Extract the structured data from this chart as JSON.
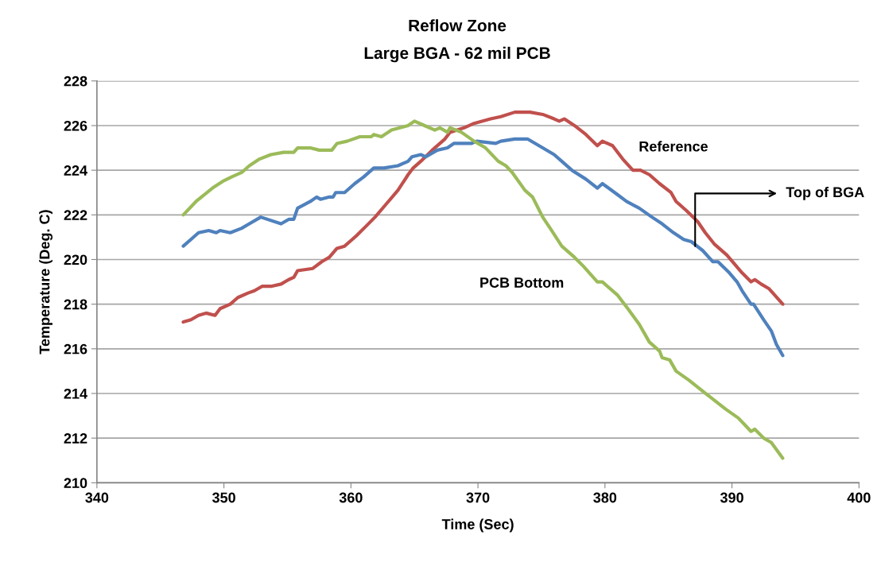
{
  "chart_data": {
    "type": "line",
    "title": "Reflow Zone",
    "subtitle": "Large BGA - 62 mil PCB",
    "xlabel": "Time (Sec)",
    "ylabel": "Temperature (Deg. C)",
    "xlim": [
      340,
      400
    ],
    "xticks": [
      340,
      350,
      360,
      370,
      380,
      390,
      400
    ],
    "ylim": [
      210,
      228
    ],
    "yticks": [
      210,
      212,
      214,
      216,
      218,
      220,
      222,
      224,
      226,
      228
    ],
    "annotations": [
      {
        "text": "Top of BGA",
        "x": 387.1,
        "y": 220.6
      }
    ],
    "grid": "y",
    "legend": false,
    "marker": "none",
    "line_style": "solid",
    "series": [
      {
        "name": "Reference",
        "color": "#c0504d",
        "x": [
          346.8,
          347.4,
          348.0,
          348.6,
          349.3,
          349.7,
          350.5,
          351.1,
          351.9,
          352.4,
          353.0,
          353.7,
          354.5,
          355.1,
          355.5,
          355.8,
          357.0,
          357.7,
          358.3,
          358.9,
          359.5,
          360.1,
          360.5,
          361.2,
          361.9,
          362.8,
          363.7,
          364.5,
          364.9,
          365.5,
          366.4,
          367.4,
          367.8,
          368.9,
          369.7,
          371.0,
          371.8,
          372.9,
          373.3,
          374.1,
          375.1,
          376.0,
          376.4,
          376.8,
          377.6,
          378.5,
          379.4,
          379.8,
          380.6,
          381.4,
          382.2,
          382.8,
          383.5,
          384.3,
          385.2,
          385.6,
          386.4,
          387.3,
          387.9,
          388.6,
          389.6,
          390.2,
          390.8,
          391.5,
          391.8,
          392.3,
          392.9,
          394.0
        ],
        "values": [
          217.2,
          217.3,
          217.5,
          217.6,
          217.5,
          217.8,
          218.0,
          218.3,
          218.5,
          218.6,
          218.8,
          218.8,
          218.9,
          219.1,
          219.2,
          219.5,
          219.6,
          219.9,
          220.1,
          220.5,
          220.6,
          220.9,
          221.1,
          221.5,
          221.9,
          222.5,
          223.1,
          223.8,
          224.1,
          224.4,
          224.9,
          225.4,
          225.7,
          225.9,
          226.1,
          226.3,
          226.4,
          226.6,
          226.6,
          226.6,
          226.5,
          226.3,
          226.2,
          226.3,
          226.0,
          225.6,
          225.1,
          225.3,
          225.1,
          224.5,
          224.0,
          224.0,
          223.8,
          223.4,
          223.0,
          222.6,
          222.2,
          221.7,
          221.2,
          220.7,
          220.2,
          219.8,
          219.4,
          219.0,
          219.1,
          218.9,
          218.7,
          218.0
        ]
      },
      {
        "color": "#4f81bd",
        "x": [
          346.8,
          347.4,
          348.0,
          348.8,
          349.4,
          349.7,
          350.5,
          351.4,
          352.0,
          352.9,
          354.5,
          355.1,
          355.5,
          355.8,
          356.8,
          357.3,
          357.6,
          358.3,
          358.6,
          358.8,
          359.5,
          360.3,
          361.0,
          361.8,
          362.6,
          363.7,
          364.5,
          364.8,
          365.5,
          365.9,
          366.8,
          367.6,
          368.1,
          369.5,
          369.9,
          371.4,
          371.8,
          372.9,
          373.9,
          375.1,
          376.0,
          376.6,
          377.4,
          378.5,
          379.4,
          379.8,
          381.0,
          381.7,
          382.7,
          383.7,
          384.5,
          385.4,
          386.2,
          386.8,
          387.7,
          388.5,
          388.9,
          389.8,
          390.4,
          390.8,
          391.5,
          391.7,
          392.5,
          393.1,
          393.5,
          394.0
        ],
        "values": [
          220.6,
          220.9,
          221.2,
          221.3,
          221.2,
          221.3,
          221.2,
          221.4,
          221.6,
          221.9,
          221.6,
          221.8,
          221.8,
          222.3,
          222.6,
          222.8,
          222.7,
          222.8,
          222.8,
          223.0,
          223.0,
          223.4,
          223.7,
          224.1,
          224.1,
          224.2,
          224.4,
          224.6,
          224.7,
          224.6,
          224.9,
          225.0,
          225.2,
          225.2,
          225.3,
          225.2,
          225.3,
          225.4,
          225.4,
          225.0,
          224.7,
          224.4,
          224.0,
          223.6,
          223.2,
          223.4,
          222.9,
          222.6,
          222.3,
          221.9,
          221.6,
          221.2,
          220.9,
          220.8,
          220.4,
          219.9,
          219.9,
          219.4,
          219.0,
          218.6,
          218.0,
          218.0,
          217.3,
          216.8,
          216.2,
          215.7
        ]
      },
      {
        "name": "PCB Bottom",
        "color": "#9bbb59",
        "x": [
          346.8,
          347.8,
          349.1,
          349.9,
          350.6,
          351.4,
          352.0,
          352.8,
          353.7,
          354.7,
          355.5,
          355.8,
          356.8,
          357.5,
          358.5,
          358.9,
          359.7,
          360.7,
          361.6,
          361.8,
          362.4,
          363.2,
          364.5,
          365.0,
          365.8,
          366.6,
          367.0,
          367.6,
          367.8,
          368.7,
          369.7,
          370.6,
          371.6,
          372.2,
          372.7,
          373.7,
          374.3,
          375.1,
          375.8,
          376.6,
          377.6,
          378.3,
          379.4,
          379.8,
          381.0,
          381.8,
          382.7,
          383.5,
          384.3,
          384.5,
          385.1,
          385.6,
          386.6,
          387.7,
          388.6,
          389.5,
          390.5,
          391.0,
          391.5,
          391.8,
          392.5,
          393.1,
          394.0
        ],
        "values": [
          222.0,
          222.6,
          223.2,
          223.5,
          223.7,
          223.9,
          224.2,
          224.5,
          224.7,
          224.8,
          224.8,
          225.0,
          225.0,
          224.9,
          224.9,
          225.2,
          225.3,
          225.5,
          225.5,
          225.6,
          225.5,
          225.8,
          226.0,
          226.2,
          226.0,
          225.8,
          225.9,
          225.7,
          225.9,
          225.7,
          225.3,
          225.0,
          224.4,
          224.2,
          223.9,
          223.1,
          222.8,
          221.9,
          221.3,
          220.6,
          220.1,
          219.7,
          219.0,
          219.0,
          218.4,
          217.8,
          217.1,
          216.3,
          215.9,
          215.6,
          215.5,
          215.0,
          214.6,
          214.1,
          213.7,
          213.3,
          212.9,
          212.6,
          212.3,
          212.4,
          212.0,
          211.8,
          211.1
        ]
      }
    ]
  }
}
